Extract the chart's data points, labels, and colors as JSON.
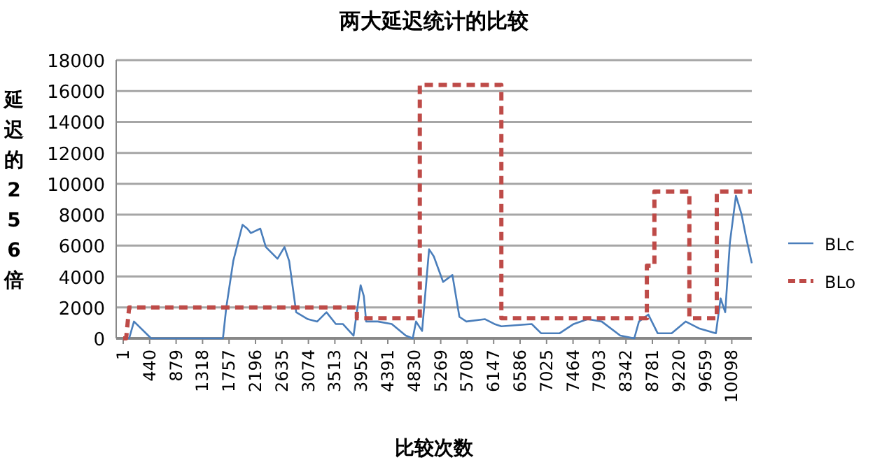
{
  "chart_data": {
    "type": "line",
    "title": "两大延迟统计的比较",
    "xlabel": "比较次数",
    "ylabel": "延迟的256倍",
    "xlim": [
      -115,
      10430
    ],
    "xticks": [
      1,
      440,
      879,
      1318,
      1757,
      2196,
      2635,
      3074,
      3513,
      3952,
      4391,
      4830,
      5269,
      5708,
      6147,
      6586,
      7025,
      7464,
      7903,
      8342,
      8781,
      9220,
      9659,
      10098
    ],
    "ylim": [
      0,
      18000
    ],
    "yticks": [
      0,
      2000,
      4000,
      6000,
      8000,
      10000,
      12000,
      14000,
      16000,
      18000
    ],
    "grid": "y",
    "legend": "right",
    "series": [
      {
        "name": "BLc",
        "color": "#4a7ebb",
        "line_style": "solid",
        "x": [
          1,
          100,
          180,
          465,
          1656,
          1711,
          1827,
          1981,
          2059,
          2120,
          2276,
          2368,
          2561,
          2677,
          2755,
          2871,
          3065,
          3220,
          3374,
          3529,
          3645,
          3823,
          3940,
          3993,
          4032,
          4225,
          4457,
          4689,
          4805,
          4859,
          4960,
          5076,
          5154,
          5309,
          5463,
          5579,
          5695,
          6005,
          6160,
          6275,
          6778,
          6934,
          7243,
          7475,
          7707,
          7939,
          8248,
          8480,
          8558,
          8713,
          8868,
          9100,
          9332,
          9564,
          9835,
          9912,
          9989,
          10067,
          10167,
          10260,
          10337,
          10430
        ],
        "values": [
          0,
          0,
          1090,
          0,
          0,
          1990,
          5000,
          7350,
          7100,
          6810,
          7100,
          5910,
          5150,
          5910,
          5000,
          1690,
          1240,
          1090,
          1690,
          930,
          930,
          180,
          3440,
          2740,
          1090,
          1090,
          930,
          180,
          0,
          1090,
          480,
          5760,
          5300,
          3650,
          4100,
          1390,
          1090,
          1240,
          930,
          780,
          930,
          330,
          330,
          930,
          1240,
          1090,
          180,
          0,
          1090,
          1540,
          330,
          330,
          1090,
          630,
          330,
          2590,
          1690,
          6210,
          9230,
          8020,
          6510,
          4860
        ]
      },
      {
        "name": "BLo",
        "color": "#be4b48",
        "line_style": "dashed",
        "x": [
          1,
          50,
          100,
          3877,
          3877,
          4922,
          4922,
          6275,
          6275,
          8689,
          8689,
          8814,
          8814,
          9394,
          9394,
          9849,
          9849,
          10430
        ],
        "values": [
          0,
          0,
          2000,
          2000,
          1300,
          1300,
          16400,
          16400,
          1300,
          1300,
          4700,
          4700,
          9500,
          9500,
          1300,
          1300,
          9500,
          9500
        ]
      }
    ]
  }
}
